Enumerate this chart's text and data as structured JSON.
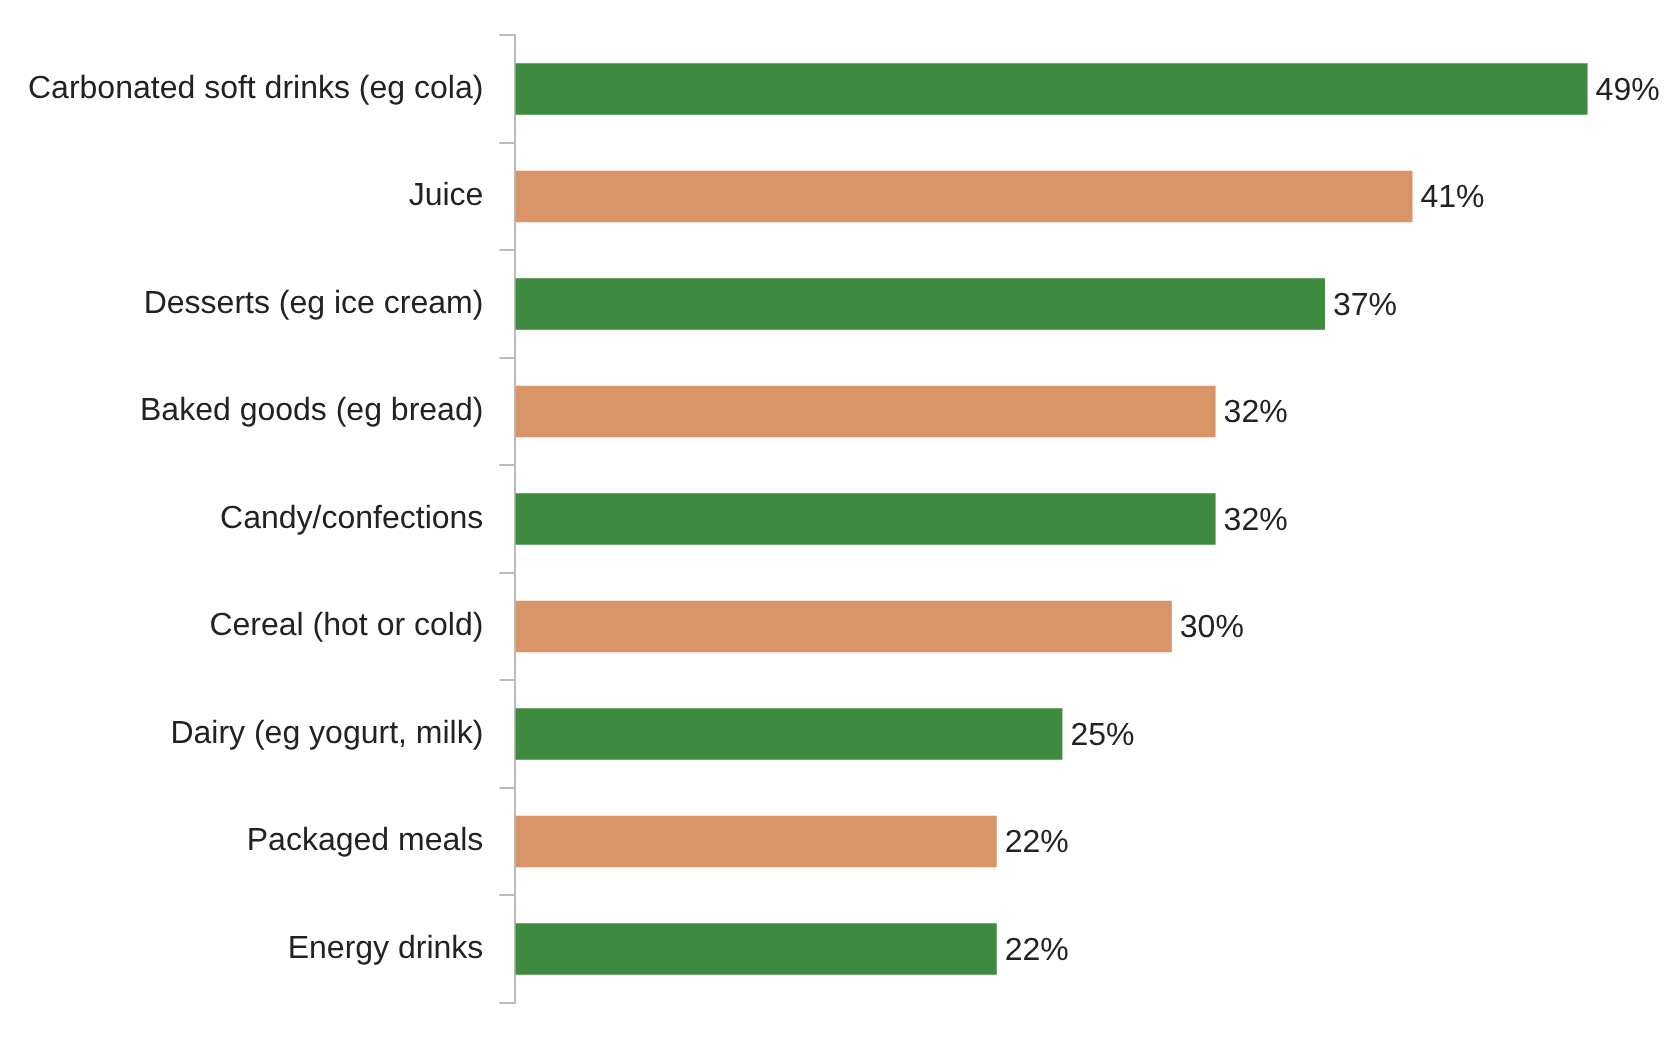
{
  "chart_data": {
    "type": "bar",
    "orientation": "horizontal",
    "categories": [
      "Carbonated soft drinks (eg cola)",
      "Juice",
      "Desserts (eg ice cream)",
      "Baked goods (eg bread)",
      "Candy/confections",
      "Cereal (hot or cold)",
      "Dairy (eg yogurt, milk)",
      "Packaged meals",
      "Energy drinks"
    ],
    "values": [
      49,
      41,
      37,
      32,
      32,
      30,
      25,
      22,
      22
    ],
    "colors": [
      "#3e8a3e",
      "#d99567",
      "#3e8a3e",
      "#d99567",
      "#3e8a3e",
      "#d99567",
      "#3e8a3e",
      "#d99567",
      "#3e8a3e"
    ],
    "value_labels": [
      "49%",
      "41%",
      "37%",
      "32%",
      "32%",
      "30%",
      "25%",
      "22%",
      "22%"
    ],
    "tick_labels": "y",
    "grid": false,
    "legend": false
  }
}
